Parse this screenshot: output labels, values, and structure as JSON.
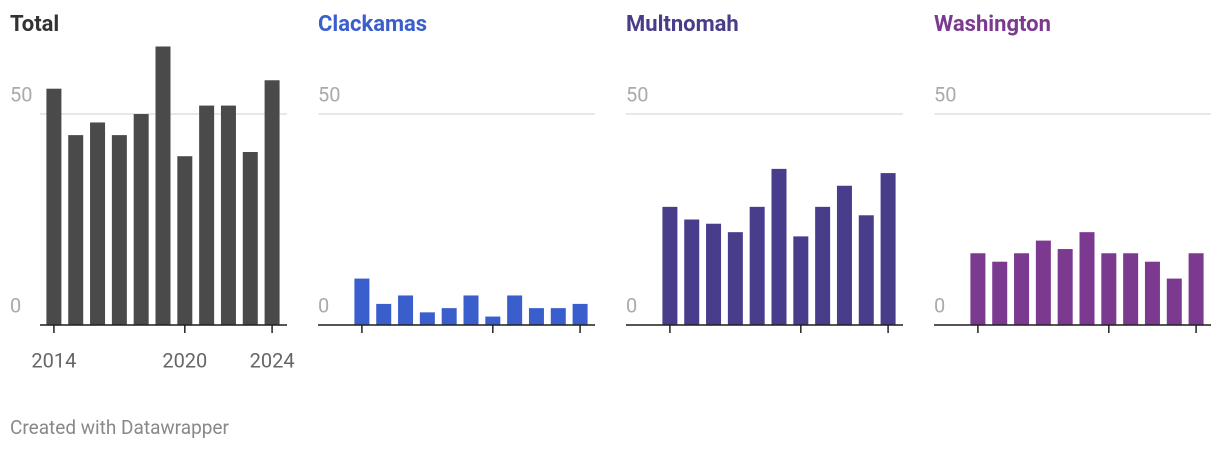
{
  "chart_data": [
    {
      "type": "bar",
      "title": "Total",
      "title_color": "#333333",
      "color": "#4a4a4a",
      "categories": [
        "2014",
        null,
        null,
        null,
        null,
        null,
        "2020",
        null,
        null,
        null,
        "2024"
      ],
      "values": [
        56,
        45,
        48,
        45,
        50,
        66,
        40,
        52,
        52,
        41,
        58
      ],
      "ylim": [
        0,
        66
      ],
      "yticks": [
        0,
        50
      ],
      "grid": true
    },
    {
      "type": "bar",
      "title": "Clackamas",
      "title_color": "#3a5fcd",
      "color": "#3a5fcd",
      "values": [
        11,
        5,
        7,
        3,
        4,
        7,
        2,
        7,
        4,
        4,
        5
      ],
      "ylim": [
        0,
        66
      ],
      "yticks": [
        0,
        50
      ],
      "grid": true
    },
    {
      "type": "bar",
      "title": "Multnomah",
      "title_color": "#483d8b",
      "color": "#483d8b",
      "values": [
        28,
        25,
        24,
        22,
        28,
        37,
        21,
        28,
        33,
        26,
        36
      ],
      "ylim": [
        0,
        66
      ],
      "yticks": [
        0,
        50
      ],
      "grid": true
    },
    {
      "type": "bar",
      "title": "Washington",
      "title_color": "#7b3a8f",
      "color": "#7b3a8f",
      "values": [
        17,
        15,
        17,
        20,
        18,
        22,
        17,
        17,
        15,
        11,
        17
      ],
      "ylim": [
        0,
        66
      ],
      "yticks": [
        0,
        50
      ],
      "grid": true
    }
  ],
  "footer": "Created with Datawrapper"
}
